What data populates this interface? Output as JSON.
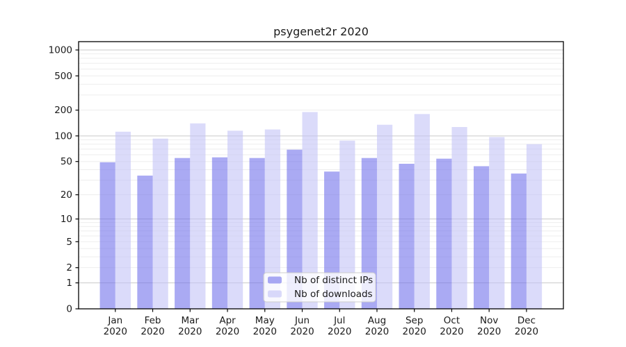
{
  "title": "psygenet2r 2020",
  "colors": {
    "bar_ips": "rgba(113,113,235,0.6)",
    "bar_ips_composite": "#aaaaf3",
    "bar_downloads": "rgba(195,195,247,0.6)",
    "bar_downloads_composite": "#dbdbfa",
    "grid_major": "#c9c9c9",
    "grid_minor": "#ededed",
    "axis": "#000000",
    "text": "#1a1a1a",
    "legend_bg": "rgba(255,255,255,0.8)",
    "legend_border": "#cccccc"
  },
  "chart_data": {
    "type": "bar",
    "title": "psygenet2r 2020",
    "categories": [
      "Jan 2020",
      "Feb 2020",
      "Mar 2020",
      "Apr 2020",
      "May 2020",
      "Jun 2020",
      "Jul 2020",
      "Aug 2020",
      "Sep 2020",
      "Oct 2020",
      "Nov 2020",
      "Dec 2020"
    ],
    "series": [
      {
        "name": "Nb of distinct IPs",
        "color_key": "bar_ips",
        "values": [
          49,
          34,
          55,
          56,
          55,
          69,
          38,
          55,
          47,
          54,
          44,
          36
        ]
      },
      {
        "name": "Nb of downloads",
        "color_key": "bar_downloads",
        "values": [
          112,
          93,
          140,
          115,
          119,
          190,
          88,
          135,
          180,
          127,
          97,
          80
        ]
      }
    ],
    "xlabel": "",
    "ylabel": "",
    "yscale": "symlog (log1p)",
    "yticks": [
      0,
      1,
      2,
      5,
      10,
      20,
      50,
      100,
      200,
      500,
      1000
    ],
    "ylim": [
      0,
      1250
    ],
    "grid": "on",
    "legend_position": "lower center"
  }
}
